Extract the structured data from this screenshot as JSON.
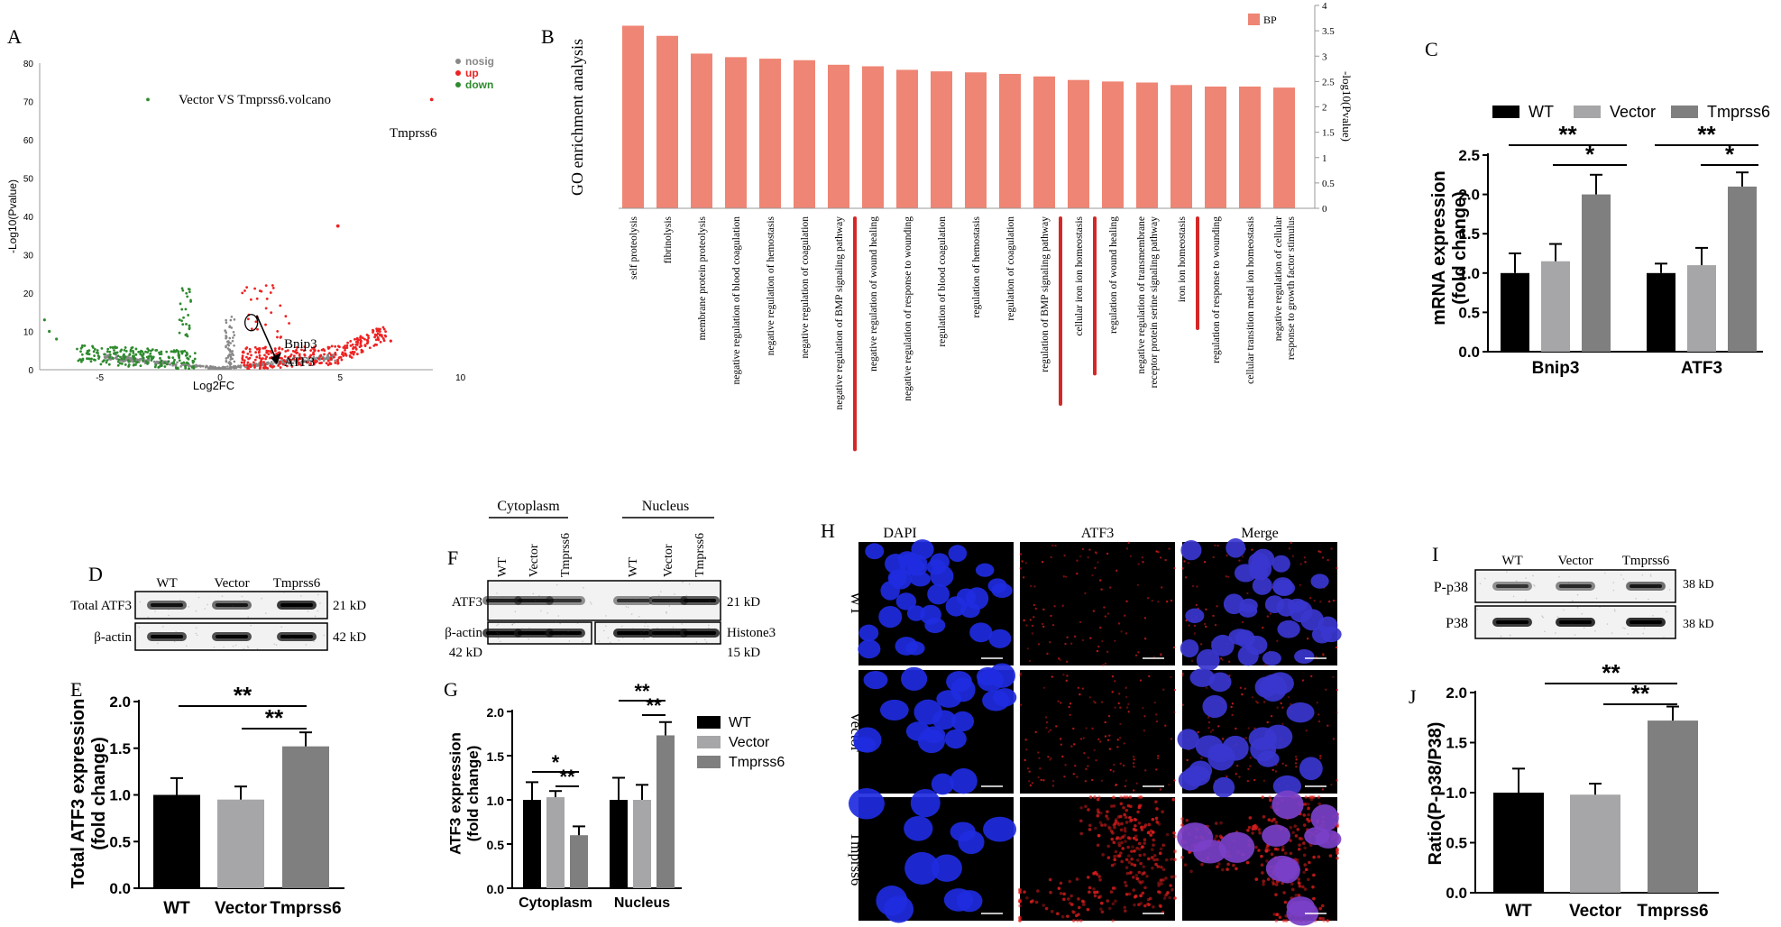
{
  "panels": {
    "A": {
      "letter": "A",
      "title": "Vector VS Tmprss6.volcano",
      "legend": [
        {
          "label": "nosig",
          "color": "#888888"
        },
        {
          "label": "up",
          "color": "#ee2222"
        },
        {
          "label": "down",
          "color": "#2e8b2e"
        }
      ],
      "xlabel": "Log2FC",
      "ylabel": "-Log10(Pvalue)",
      "xticks": [
        "-5",
        "0",
        "5",
        "10"
      ],
      "yticks": [
        "0",
        "10",
        "20",
        "30",
        "40",
        "50",
        "60",
        "70",
        "80"
      ],
      "annotation_top": "Tmprss6",
      "annotation_genes": [
        "Bnip3",
        "ATF3"
      ]
    },
    "B": {
      "letter": "B",
      "ylabel": "GO enrichment analysis",
      "legend": "BP",
      "right_axis_label": "-log10(Pvalue)",
      "right_ticks": [
        "0",
        "0.5",
        "1",
        "1.5",
        "2",
        "2.5",
        "3",
        "3.5",
        "4"
      ]
    },
    "C": {
      "letter": "C",
      "legend": [
        "WT",
        "Vector",
        "Tmprss6"
      ],
      "ylabel": "mRNA expression\n(fold change)",
      "groups": [
        "Bnip3",
        "ATF3"
      ],
      "yticks": [
        "0.0",
        "0.5",
        "1.0",
        "1.5",
        "2.0",
        "2.5"
      ],
      "sig": [
        "**",
        "*",
        "**",
        "*"
      ]
    },
    "D": {
      "letter": "D",
      "lanes": [
        "WT",
        "Vector",
        "Tmprss6"
      ],
      "rows": [
        "Total ATF3",
        "β-actin"
      ],
      "sizes": [
        "21 kD",
        "42 kD"
      ]
    },
    "E": {
      "letter": "E",
      "ylabel": "Total ATF3 expression\n(fold change)",
      "categories": [
        "WT",
        "Vector",
        "Tmprss6"
      ],
      "yticks": [
        "0.0",
        "0.5",
        "1.0",
        "1.5",
        "2.0"
      ],
      "sig": [
        "**",
        "**"
      ]
    },
    "F": {
      "letter": "F",
      "compartments": [
        "Cytoplasm",
        "Nucleus"
      ],
      "lanes": [
        "WT",
        "Vector",
        "Tmprss6",
        "WT",
        "Vector",
        "Tmprss6"
      ],
      "row_atf3": "ATF3",
      "row_actin": "β-actin",
      "actin_size": "42 kD",
      "atf3_size": "21 kD",
      "histone": "Histone3",
      "histone_size": "15 kD"
    },
    "G": {
      "letter": "G",
      "ylabel": "ATF3 expression\n(fold change)",
      "groups": [
        "Cytoplasm",
        "Nucleus"
      ],
      "legend": [
        "WT",
        "Vector",
        "Tmprss6"
      ],
      "yticks": [
        "0.0",
        "0.5",
        "1.0",
        "1.5",
        "2.0"
      ],
      "sig": [
        "*",
        "**",
        "**",
        "**"
      ]
    },
    "H": {
      "letter": "H",
      "columns": [
        "DAPI",
        "ATF3",
        "Merge"
      ],
      "rows": [
        "WT",
        "Vector",
        "Tmprss6"
      ]
    },
    "I": {
      "letter": "I",
      "lanes": [
        "WT",
        "Vector",
        "Tmprss6"
      ],
      "rows": [
        "P-p38",
        "P38"
      ],
      "sizes": [
        "38 kD",
        "38 kD"
      ]
    },
    "J": {
      "letter": "J",
      "ylabel": "Ratio(P-p38/P38)",
      "categories": [
        "WT",
        "Vector",
        "Tmprss6"
      ],
      "yticks": [
        "0.0",
        "0.5",
        "1.0",
        "1.5",
        "2.0"
      ],
      "sig": [
        "**",
        "**"
      ]
    }
  },
  "colors": {
    "wt": "#000000",
    "vector": "#a6a6a8",
    "tmprss6": "#7f7f7f",
    "go_bar": "#ef8574",
    "marker": "#d42828"
  },
  "chart_data": [
    {
      "type": "bar",
      "panel": "B",
      "categories": [
        "self proteolysis",
        "fibrinolysis",
        "membrane protein proteolysis",
        "negative regulation of blood coagulation",
        "negative regulation of hemostasis",
        "negative regulation of coagulation",
        "negative regulation of BMP signaling pathway",
        "negative regulation of wound healing",
        "negative regulation of response to wounding",
        "regulation of blood coagulation",
        "regulation of hemostasis",
        "regulation of coagulation",
        "regulation of BMP signaling pathway",
        "cellular iron ion homeostasis",
        "regulation of wound healing",
        "negative regulation of transmembrane receptor protein serine signaling pathway",
        "iron ion homeostasis",
        "regulation of response to wounding",
        "cellular transition metal ion homeostasis",
        "negative regulation of cellular response to growth factor stimulus"
      ],
      "values": [
        3.6,
        3.4,
        3.05,
        2.98,
        2.95,
        2.92,
        2.83,
        2.8,
        2.73,
        2.7,
        2.68,
        2.65,
        2.6,
        2.53,
        2.5,
        2.48,
        2.43,
        2.4,
        2.4,
        2.38
      ],
      "highlighted": [
        "negative regulation of BMP signaling pathway",
        "regulation of BMP signaling pathway",
        "cellular iron ion homeostasis",
        "iron ion homeostasis"
      ],
      "ylim": [
        0,
        4
      ]
    },
    {
      "type": "bar",
      "panel": "C",
      "categories": [
        "Bnip3",
        "ATF3"
      ],
      "series": [
        {
          "name": "WT",
          "values": [
            1.0,
            1.0
          ],
          "errors": [
            0.25,
            0.12
          ]
        },
        {
          "name": "Vector",
          "values": [
            1.15,
            1.1
          ],
          "errors": [
            0.22,
            0.22
          ]
        },
        {
          "name": "Tmprss6",
          "values": [
            2.0,
            2.1
          ],
          "errors": [
            0.25,
            0.18
          ]
        }
      ],
      "ylim": [
        0,
        2.5
      ]
    },
    {
      "type": "bar",
      "panel": "E",
      "categories": [
        "WT",
        "Vector",
        "Tmprss6"
      ],
      "values": [
        1.0,
        0.95,
        1.52
      ],
      "errors": [
        0.18,
        0.14,
        0.15
      ],
      "ylim": [
        0,
        2.0
      ]
    },
    {
      "type": "bar",
      "panel": "G",
      "categories": [
        "Cytoplasm",
        "Nucleus"
      ],
      "series": [
        {
          "name": "WT",
          "values": [
            1.0,
            1.0
          ],
          "errors": [
            0.2,
            0.25
          ]
        },
        {
          "name": "Vector",
          "values": [
            1.03,
            1.0
          ],
          "errors": [
            0.07,
            0.17
          ]
        },
        {
          "name": "Tmprss6",
          "values": [
            0.6,
            1.73
          ],
          "errors": [
            0.1,
            0.15
          ]
        }
      ],
      "ylim": [
        0,
        2.0
      ]
    },
    {
      "type": "bar",
      "panel": "J",
      "categories": [
        "WT",
        "Vector",
        "Tmprss6"
      ],
      "values": [
        1.0,
        0.98,
        1.72
      ],
      "errors": [
        0.24,
        0.11,
        0.14
      ],
      "ylim": [
        0,
        2.0
      ]
    },
    {
      "type": "scatter",
      "panel": "A",
      "xlim": [
        -7.5,
        10.5
      ],
      "ylim": [
        0,
        80
      ],
      "highlight_points": [
        {
          "x": 8.8,
          "y": 70.5,
          "label": "Tmprss6"
        },
        {
          "x": -3.0,
          "y": 70.5
        },
        {
          "x": 4.9,
          "y": 37.5
        }
      ]
    }
  ]
}
